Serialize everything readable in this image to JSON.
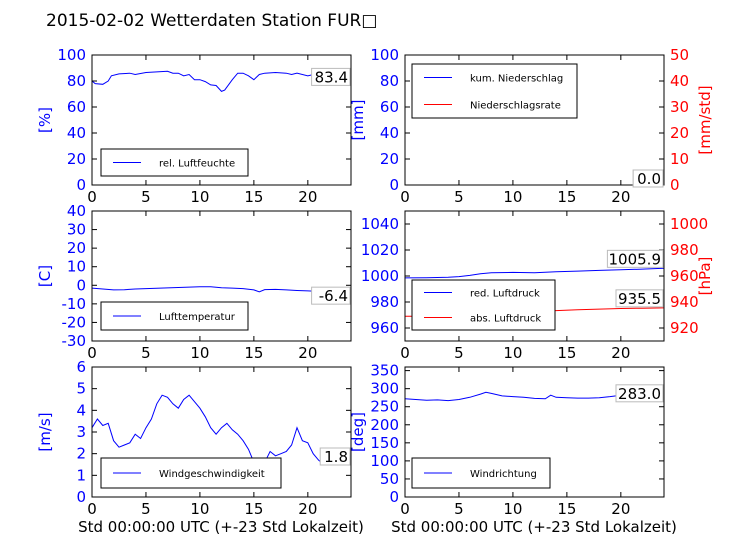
{
  "title": "2015-02-02 Wetterdaten Station FUR□",
  "xlabel": "Std 00:00:00 UTC (+-23 Std Lokalzeit)",
  "colors": {
    "primary": "#0000ff",
    "secondary": "#ff0000",
    "frame": "#000000"
  },
  "chart_data": [
    {
      "type": "line",
      "id": "humidity",
      "xlim": [
        0,
        24
      ],
      "xticks": [
        0,
        5,
        10,
        15,
        20
      ],
      "ylim": [
        0,
        100
      ],
      "yticks": [
        0,
        20,
        40,
        60,
        80,
        100
      ],
      "ylabel": "[%]",
      "current_value": "83.4",
      "legend_loc": "lower-left",
      "series": [
        {
          "name": "rel. Luftfeuchte",
          "axis": "left",
          "color": "#0000ff",
          "x": [
            0,
            0.3,
            1,
            1.5,
            1.8,
            2.5,
            3.5,
            4,
            5,
            6,
            7,
            7.5,
            8,
            8.5,
            9,
            9.5,
            10,
            10.5,
            11,
            11.5,
            12,
            12.3,
            13,
            13.5,
            14,
            14.5,
            15,
            15.5,
            16,
            17,
            18,
            18.5,
            19,
            20,
            20.5,
            21,
            22,
            23,
            24
          ],
          "y": [
            80,
            78,
            77.5,
            80,
            84,
            85.5,
            86,
            85,
            86.5,
            87,
            87.5,
            86,
            86,
            84,
            85,
            81,
            81,
            79.5,
            77,
            76.5,
            72,
            73,
            81,
            86,
            86,
            84,
            81,
            85,
            86,
            86.5,
            86,
            85,
            86,
            84,
            85,
            82,
            81,
            80,
            82
          ]
        }
      ]
    },
    {
      "type": "line",
      "id": "precip",
      "xlim": [
        0,
        24
      ],
      "xticks": [
        0,
        5,
        10,
        15,
        20
      ],
      "ylim": [
        0,
        100
      ],
      "yticks": [
        0,
        20,
        40,
        60,
        80,
        100
      ],
      "ylabel": "[mm]",
      "y2lim": [
        0,
        50
      ],
      "y2ticks": [
        0,
        10,
        20,
        30,
        40,
        50
      ],
      "y2label": "[mm/std]",
      "current_value": "0.0",
      "current_value2": "0.0",
      "legend_loc": "upper-left",
      "series": [
        {
          "name": "kum. Niederschlag",
          "axis": "left",
          "color": "#0000ff",
          "x": [
            0,
            24
          ],
          "y": [
            0,
            0
          ]
        },
        {
          "name": "Niederschlagsrate",
          "axis": "right",
          "color": "#ff0000",
          "x": [
            0,
            24
          ],
          "y": [
            0,
            0
          ]
        }
      ]
    },
    {
      "type": "line",
      "id": "temperature",
      "xlim": [
        0,
        24
      ],
      "xticks": [
        0,
        5,
        10,
        15,
        20
      ],
      "ylim": [
        -30,
        40
      ],
      "yticks": [
        -30,
        -20,
        -10,
        0,
        10,
        20,
        30,
        40
      ],
      "ylabel": "[C]",
      "current_value": "-6.4",
      "legend_loc": "lower-left",
      "series": [
        {
          "name": "Lufttemperatur",
          "axis": "left",
          "color": "#0000ff",
          "x": [
            0,
            1,
            2,
            3,
            4,
            5,
            6,
            7,
            8,
            9,
            10,
            11,
            12,
            13,
            14,
            15,
            15.5,
            16,
            17,
            18,
            19,
            20,
            21,
            22,
            23,
            24
          ],
          "y": [
            -1.5,
            -2,
            -2.5,
            -2.4,
            -2,
            -1.8,
            -1.6,
            -1.4,
            -1.2,
            -1,
            -0.8,
            -0.8,
            -1.3,
            -1.5,
            -1.8,
            -2.5,
            -3.5,
            -2.3,
            -2.2,
            -2.5,
            -2.8,
            -3,
            -3.3,
            -4.2,
            -5.5,
            -6.4
          ]
        }
      ]
    },
    {
      "type": "line",
      "id": "pressure",
      "xlim": [
        0,
        24
      ],
      "xticks": [
        0,
        5,
        10,
        15,
        20
      ],
      "ylim": [
        950,
        1050
      ],
      "yticks": [
        960,
        980,
        1000,
        1020,
        1040
      ],
      "ylabel": "",
      "y2lim": [
        910,
        1010
      ],
      "y2ticks": [
        920,
        940,
        960,
        980,
        1000
      ],
      "y2label": "[hPa]",
      "current_value": "1005.9",
      "current_value2": "935.5",
      "legend_loc": "lower-left",
      "series": [
        {
          "name": "red. Luftdruck",
          "axis": "left",
          "color": "#0000ff",
          "x": [
            0,
            2,
            4,
            5,
            6,
            7,
            8,
            10,
            12,
            14,
            16,
            18,
            20,
            22,
            24
          ],
          "y": [
            998.5,
            998.6,
            999,
            999.5,
            1000.5,
            1001.8,
            1002.5,
            1002.8,
            1002.5,
            1003.2,
            1003.8,
            1004.3,
            1004.8,
            1005.3,
            1005.9
          ]
        },
        {
          "name": "abs. Luftdruck",
          "axis": "right",
          "color": "#ff0000",
          "x": [
            0,
            2,
            4,
            5,
            6,
            7,
            8,
            10,
            12,
            14,
            16,
            18,
            20,
            22,
            24
          ],
          "y": [
            929,
            929.1,
            929.5,
            930,
            931,
            932,
            932.8,
            933,
            932.8,
            933.4,
            934,
            934.5,
            935,
            935.2,
            935.5
          ]
        }
      ]
    },
    {
      "type": "line",
      "id": "wind-speed",
      "xlim": [
        0,
        24
      ],
      "xticks": [
        0,
        5,
        10,
        15,
        20
      ],
      "ylim": [
        0,
        6
      ],
      "yticks": [
        0,
        1,
        2,
        3,
        4,
        5,
        6
      ],
      "ylabel": "[m/s]",
      "current_value": "1.8",
      "legend_loc": "lower-left",
      "series": [
        {
          "name": "Windgeschwindigkeit",
          "axis": "left",
          "color": "#0000ff",
          "x": [
            0,
            0.5,
            1,
            1.5,
            2,
            2.5,
            3,
            3.5,
            4,
            4.5,
            5,
            5.5,
            6,
            6.5,
            7,
            7.5,
            8,
            8.5,
            9,
            9.5,
            10,
            10.5,
            11,
            11.5,
            12,
            12.5,
            13,
            13.5,
            14,
            14.5,
            15,
            15.5,
            16,
            16.5,
            17,
            17.5,
            18,
            18.5,
            19,
            19.5,
            20,
            20.5,
            21,
            21.5,
            22,
            22.5,
            23,
            23.5,
            24
          ],
          "y": [
            3.2,
            3.6,
            3.3,
            3.4,
            2.6,
            2.3,
            2.4,
            2.5,
            2.9,
            2.7,
            3.2,
            3.6,
            4.3,
            4.7,
            4.6,
            4.3,
            4.1,
            4.5,
            4.7,
            4.4,
            4.1,
            3.7,
            3.2,
            2.9,
            3.2,
            3.4,
            3.1,
            2.9,
            2.6,
            2.2,
            1.6,
            1.7,
            1.6,
            2.1,
            1.9,
            2.0,
            2.1,
            2.4,
            3.2,
            2.6,
            2.5,
            2.0,
            1.7,
            1.5,
            1.6,
            1.9,
            1.7,
            1.7,
            1.8
          ]
        }
      ]
    },
    {
      "type": "line",
      "id": "wind-direction",
      "xlim": [
        0,
        24
      ],
      "xticks": [
        0,
        5,
        10,
        15,
        20
      ],
      "ylim": [
        0,
        360
      ],
      "yticks": [
        0,
        50,
        100,
        150,
        200,
        250,
        300,
        350
      ],
      "ylabel": "[deg]",
      "current_value": "283.0",
      "legend_loc": "lower-left",
      "series": [
        {
          "name": "Windrichtung",
          "axis": "left",
          "color": "#0000ff",
          "x": [
            0,
            1,
            2,
            3,
            4,
            5,
            6,
            7,
            7.5,
            8,
            9,
            10,
            11,
            12,
            13,
            13.5,
            14,
            15,
            16,
            17,
            18,
            19,
            20,
            21,
            22,
            23,
            24
          ],
          "y": [
            272,
            270,
            268,
            269,
            267,
            270,
            276,
            285,
            290,
            287,
            280,
            278,
            276,
            273,
            272,
            282,
            276,
            275,
            274,
            274,
            275,
            278,
            282,
            283,
            277,
            283,
            283
          ]
        }
      ]
    }
  ]
}
